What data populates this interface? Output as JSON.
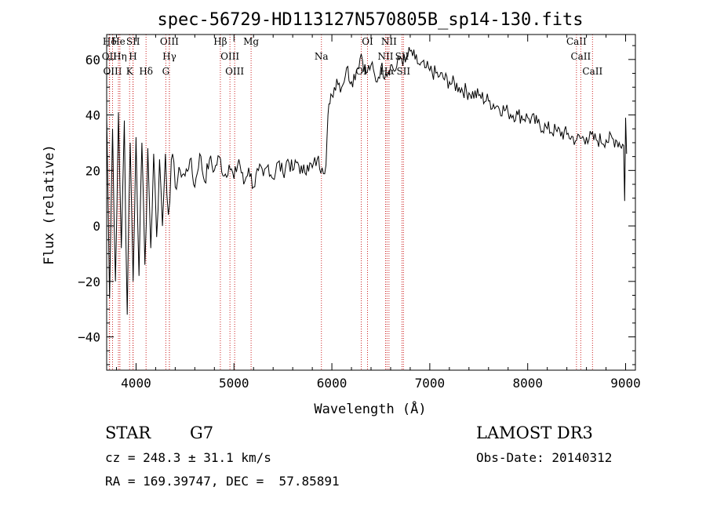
{
  "chart_data": {
    "type": "line",
    "title": "spec-56729-HD113127N570805B_sp14-130.fits",
    "xlabel": "Wavelength (Å)",
    "ylabel": "Flux (relative)",
    "xlim": [
      3700,
      9100
    ],
    "ylim": [
      -52,
      69
    ],
    "xticks": [
      4000,
      5000,
      6000,
      7000,
      8000,
      9000
    ],
    "xtick_labels": [
      "4000",
      "5000",
      "6000",
      "7000",
      "8000",
      "9000"
    ],
    "yticks": [
      -40,
      -20,
      0,
      20,
      40,
      60
    ],
    "ytick_labels": [
      "−40",
      "−20",
      "0",
      "20",
      "40",
      "60"
    ],
    "series": [
      {
        "name": "flux",
        "x": [
          3700,
          3730,
          3760,
          3790,
          3820,
          3850,
          3880,
          3910,
          3940,
          3970,
          4000,
          4030,
          4060,
          4090,
          4120,
          4150,
          4180,
          4210,
          4240,
          4270,
          4300,
          4330,
          4360,
          4400,
          4450,
          4500,
          4550,
          4600,
          4650,
          4700,
          4750,
          4800,
          4850,
          4900,
          4950,
          5000,
          5050,
          5100,
          5150,
          5200,
          5250,
          5300,
          5350,
          5400,
          5450,
          5500,
          5550,
          5600,
          5650,
          5700,
          5750,
          5800,
          5850,
          5900,
          5940,
          5960,
          5980,
          6000,
          6050,
          6100,
          6150,
          6200,
          6250,
          6300,
          6350,
          6400,
          6450,
          6500,
          6550,
          6600,
          6650,
          6700,
          6750,
          6800,
          6850,
          6900,
          6950,
          7000,
          7100,
          7200,
          7300,
          7400,
          7500,
          7600,
          7700,
          7800,
          7900,
          8000,
          8100,
          8200,
          8300,
          8400,
          8500,
          8600,
          8700,
          8800,
          8900,
          8980,
          8990,
          9000,
          9010
        ],
        "y": [
          40,
          -26,
          35,
          -20,
          41,
          -8,
          38,
          -32,
          30,
          -20,
          32,
          -18,
          30,
          -14,
          28,
          -8,
          26,
          -4,
          24,
          0,
          26,
          4,
          24,
          14,
          20,
          18,
          24,
          14,
          26,
          16,
          24,
          20,
          25,
          18,
          22,
          17,
          24,
          15,
          21,
          14,
          20,
          18,
          22,
          17,
          23,
          19,
          24,
          20,
          23,
          19,
          22,
          21,
          24,
          21,
          22,
          40,
          44,
          47,
          53,
          50,
          57,
          52,
          56,
          62,
          55,
          58,
          52,
          57,
          55,
          58,
          56,
          61,
          59,
          63,
          60,
          58,
          57,
          56,
          54,
          52,
          50,
          48,
          47,
          45,
          43,
          41,
          40,
          39,
          37,
          35,
          34,
          33,
          31,
          32,
          31,
          31,
          31,
          29,
          9,
          39,
          26
        ]
      }
    ],
    "line_markers": [
      {
        "label": "Hδ",
        "x": 3730
      },
      {
        "label": "OII",
        "x": 3727
      },
      {
        "label": "OIII",
        "x": 3760
      },
      {
        "label": "He",
        "x": 3820
      },
      {
        "label": "Hη",
        "x": 3835
      },
      {
        "label": "K",
        "x": 3934
      },
      {
        "label": "SII",
        "x": 3970
      },
      {
        "label": "H",
        "x": 3968
      },
      {
        "label": "Hδ",
        "x": 4102
      },
      {
        "label": "OIII",
        "x": 4340
      },
      {
        "label": "Hγ",
        "x": 4341
      },
      {
        "label": "G",
        "x": 4304
      },
      {
        "label": "Hβ",
        "x": 4861
      },
      {
        "label": "OIII",
        "x": 4959
      },
      {
        "label": "OIII",
        "x": 5007
      },
      {
        "label": "Mg",
        "x": 5175
      },
      {
        "label": "Na",
        "x": 5893
      },
      {
        "label": "OI",
        "x": 6300
      },
      {
        "label": "OI",
        "x": 6364
      },
      {
        "label": "NII",
        "x": 6548
      },
      {
        "label": "Hα",
        "x": 6563
      },
      {
        "label": "NII",
        "x": 6583
      },
      {
        "label": "SII",
        "x": 6716
      },
      {
        "label": "SII",
        "x": 6731
      },
      {
        "label": "CaII",
        "x": 8498
      },
      {
        "label": "CaII",
        "x": 8542
      },
      {
        "label": "CaII",
        "x": 8662
      }
    ]
  },
  "info": {
    "class": "STAR",
    "subclass": "G7",
    "survey": "LAMOST DR3",
    "cz": "cz = 248.3 ± 31.1 km/s",
    "obs_date": "Obs-Date: 20140312",
    "coords": "RA = 169.39747, DEC =  57.85891"
  },
  "colors": {
    "spectrum": "#000000",
    "marker": "#cc2222",
    "axis": "#000000"
  }
}
